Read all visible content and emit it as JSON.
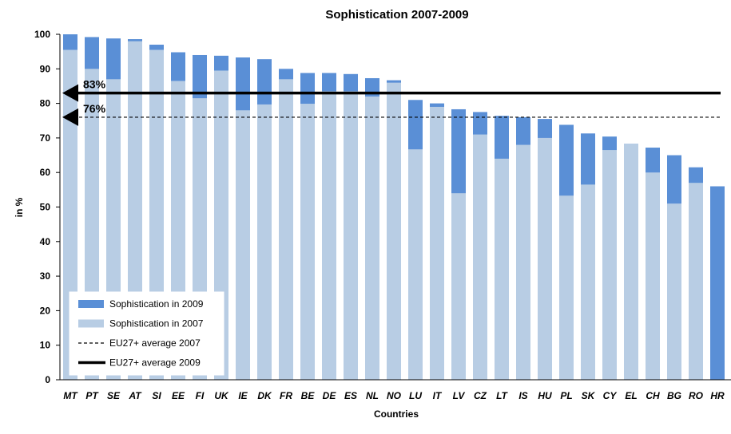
{
  "chart_data": {
    "type": "bar",
    "title": "Sophistication 2007-2009",
    "xlabel": "Countries",
    "ylabel": "in %",
    "ylim": [
      0,
      100
    ],
    "yticks": [
      0,
      10,
      20,
      30,
      40,
      50,
      60,
      70,
      80,
      90,
      100
    ],
    "categories": [
      "MT",
      "PT",
      "SE",
      "AT",
      "SI",
      "EE",
      "FI",
      "UK",
      "IE",
      "DK",
      "FR",
      "BE",
      "DE",
      "ES",
      "NL",
      "NO",
      "LU",
      "IT",
      "LV",
      "CZ",
      "LT",
      "IS",
      "HU",
      "PL",
      "SK",
      "CY",
      "EL",
      "CH",
      "BG",
      "RO",
      "HR"
    ],
    "series": [
      {
        "name": "Sophistication in 2007",
        "color": "#b8cde4",
        "values": [
          95.5,
          90,
          87,
          98,
          95.5,
          86.5,
          81.5,
          89.5,
          78,
          79.7,
          87,
          79.9,
          83.5,
          83.5,
          82,
          86,
          66.7,
          79,
          54,
          71,
          64,
          68,
          70,
          53.3,
          56.5,
          66.5,
          68.3,
          60,
          51,
          57,
          null
        ]
      },
      {
        "name": "Sophistication in 2009",
        "color": "#5a8fd6",
        "values": [
          100,
          99.2,
          98.8,
          98.6,
          97,
          94.8,
          94,
          93.8,
          93.3,
          92.8,
          90,
          88.8,
          88.8,
          88.5,
          87.3,
          86.7,
          81,
          80,
          78.3,
          77.5,
          76.4,
          76,
          75.5,
          73.8,
          71.3,
          70.4,
          68.3,
          67.2,
          65,
          61.5,
          56
        ]
      }
    ],
    "reference_lines": [
      {
        "name": "EU27+ average 2007",
        "value": 76,
        "label": "76%",
        "style": "dashed"
      },
      {
        "name": "EU27+ average 2009",
        "value": 83,
        "label": "83%",
        "style": "solid"
      }
    ],
    "legend": {
      "position": "bottom-left",
      "entries": [
        {
          "label": "Sophistication in 2009",
          "kind": "box",
          "color": "#5a8fd6"
        },
        {
          "label": "Sophistication in 2007",
          "kind": "box",
          "color": "#b8cde4"
        },
        {
          "label": "EU27+ average 2007",
          "kind": "dashed",
          "color": "#000000"
        },
        {
          "label": "EU27+ average 2009",
          "kind": "solid",
          "color": "#000000"
        }
      ]
    },
    "grid": false
  }
}
